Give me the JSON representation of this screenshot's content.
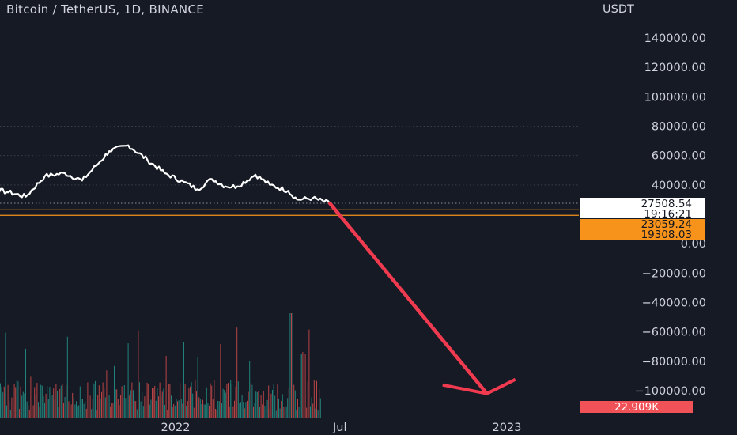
{
  "header": {
    "title": "Bitcoin / TetherUS, 1D, BINANCE"
  },
  "colors": {
    "background": "#161a25",
    "price_line": "#ffffff",
    "support_line": "#f7931a",
    "arrow": "#ef3a4f",
    "volume_up": "#26a69a",
    "volume_down": "#ef5350",
    "volume_tag": "#f05258"
  },
  "chart_data": {
    "type": "line",
    "title": "Bitcoin / TetherUS, 1D, BINANCE",
    "ylabel": "USDT",
    "ylim": [
      -100000,
      140000
    ],
    "y_ticks": [
      "140000.00",
      "120000.00",
      "100000.00",
      "80000.00",
      "60000.00",
      "40000.00",
      "0.00",
      "−20000.00",
      "−40000.00",
      "−60000.00",
      "−80000.00",
      "−100000.00"
    ],
    "y_tick_values": [
      140000,
      120000,
      100000,
      80000,
      60000,
      40000,
      0,
      -20000,
      -40000,
      -60000,
      -80000,
      -100000
    ],
    "x_ticks": [
      "2022",
      "Jul",
      "2023"
    ],
    "x_tick_dates": [
      "2022-01-01",
      "2022-07-01",
      "2023-01-01"
    ],
    "xlim": [
      "2021-05-01",
      "2023-05-01"
    ],
    "series": [
      {
        "type": "line",
        "dates": [
          "2021-05-01",
          "2021-05-20",
          "2021-06-10",
          "2021-07-01",
          "2021-07-20",
          "2021-08-10",
          "2021-09-01",
          "2021-09-20",
          "2021-10-10",
          "2021-10-20",
          "2021-11-10",
          "2021-12-01",
          "2021-12-20",
          "2022-01-10",
          "2022-01-25",
          "2022-02-10",
          "2022-02-25",
          "2022-03-10",
          "2022-03-30",
          "2022-04-15",
          "2022-05-05",
          "2022-05-15",
          "2022-06-01",
          "2022-06-20"
        ],
        "values": [
          40000,
          37000,
          37500,
          35000,
          32000,
          46000,
          48000,
          43000,
          56000,
          63000,
          67000,
          57000,
          48000,
          42000,
          37000,
          44000,
          39000,
          39000,
          47000,
          40000,
          36000,
          30000,
          31000,
          27500
        ]
      }
    ],
    "volume": {
      "label": "22.909K",
      "note": "volume histogram, bars in red and green"
    },
    "horizontal_levels": [
      {
        "value": 23059.24,
        "label": "23059.24"
      },
      {
        "value": 19308.03,
        "label": "19308.03"
      }
    ],
    "price_tag": {
      "value": 27508.54,
      "price": "27508.54",
      "countdown": "19:16:21"
    },
    "annotations": [
      {
        "type": "arrow",
        "from": {
          "date": "2022-06-20",
          "value": 27500
        },
        "to": {
          "date": "2022-12-10",
          "value": -102000
        }
      }
    ]
  }
}
